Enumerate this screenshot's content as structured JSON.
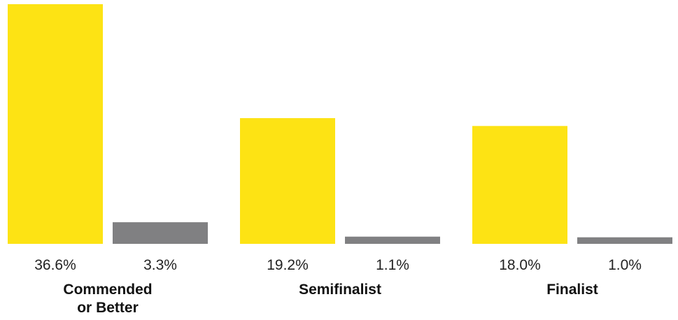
{
  "chart_data": {
    "type": "bar",
    "categories": [
      "Commended or Better",
      "Semifinalist",
      "Finalist"
    ],
    "category_label_lines": [
      [
        "Commended",
        "or Better"
      ],
      [
        "Semifinalist"
      ],
      [
        "Finalist"
      ]
    ],
    "series": [
      {
        "values": [
          36.6,
          19.2,
          18.0
        ],
        "labels": [
          "36.6%",
          "19.2%",
          "18.0%"
        ],
        "color": "#FDE314"
      },
      {
        "values": [
          3.3,
          1.1,
          1.0
        ],
        "labels": [
          "3.3%",
          "1.1%",
          "1.0%"
        ],
        "color": "#808082"
      }
    ],
    "ylim": [
      0,
      36.6
    ],
    "grid": false,
    "legend": "none",
    "title": "",
    "xlabel": "",
    "ylabel": ""
  }
}
